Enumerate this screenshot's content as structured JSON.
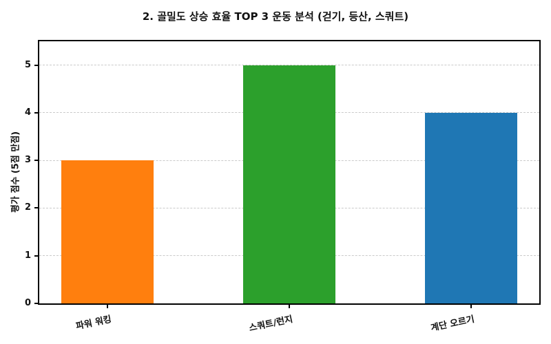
{
  "chart_data": {
    "type": "bar",
    "title": "2. 골밀도 상승 효율 TOP 3 운동 분석 (걷기, 등산, 스쿼트)",
    "xlabel": "",
    "ylabel": "평가 점수 (5점 만점)",
    "categories": [
      "파워 워킹",
      "스쿼트/런지",
      "계단 오르기"
    ],
    "values": [
      3,
      5,
      4
    ],
    "bar_colors": [
      "#ff7f0e",
      "#2ca02c",
      "#1f77b4"
    ],
    "yticks": [
      0,
      1,
      2,
      3,
      4,
      5
    ],
    "ylim": [
      0,
      5.5
    ],
    "grid": "horizontal-dashed",
    "gridline_color": "#c9c9c9",
    "frame_color": "#000000",
    "background_color": "#ffffff",
    "legend": "none"
  }
}
